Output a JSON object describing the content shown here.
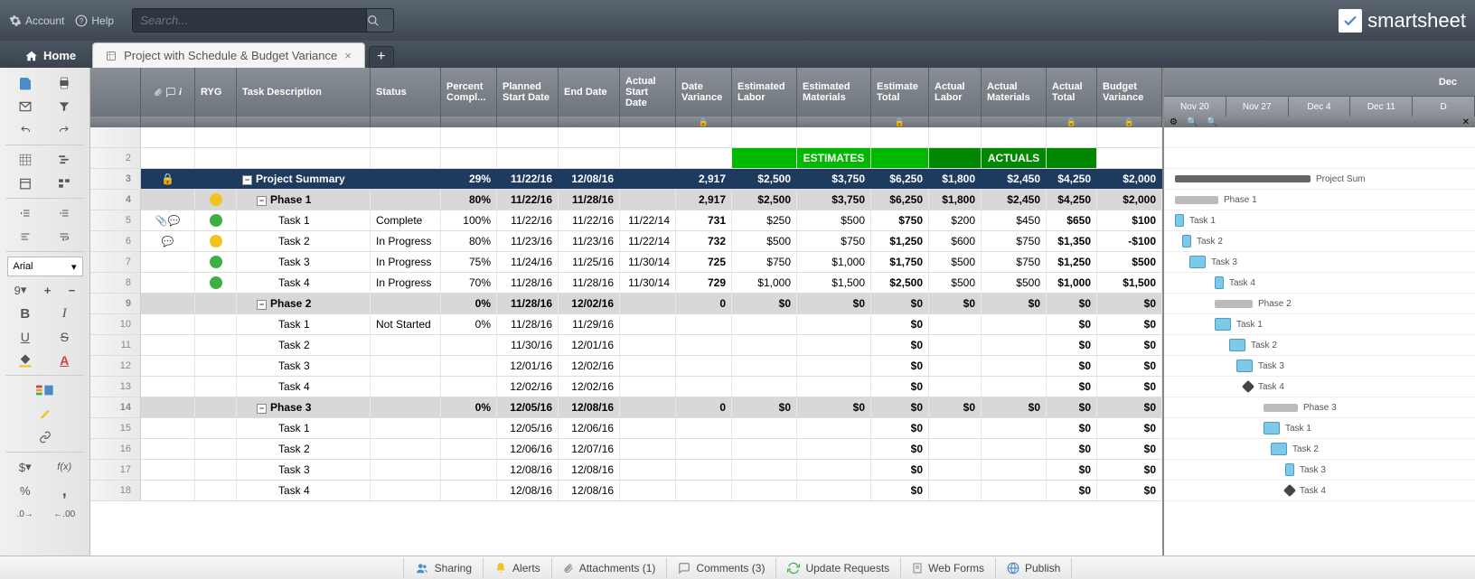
{
  "topbar": {
    "account": "Account",
    "help": "Help",
    "search_placeholder": "Search...",
    "brand": "smartsheet"
  },
  "tabs": {
    "home": "Home",
    "sheet": "Project with Schedule & Budget Variance"
  },
  "toolbar": {
    "font": "Arial",
    "size": "9",
    "bold": "B",
    "italic": "I",
    "underline": "U",
    "strike": "S",
    "currency": "$",
    "fx": "f(x)",
    "percent": "%",
    "comma": ",",
    "dec_inc": ".0",
    "dec_dec": ".00"
  },
  "columns": {
    "ryg": "RYG",
    "task": "Task Description",
    "status": "Status",
    "pct": "Percent Compl...",
    "psd": "Planned Start Date",
    "end": "End Date",
    "asd": "Actual Start Date",
    "dv": "Date Variance",
    "el": "Estimated Labor",
    "em": "Estimated Materials",
    "et": "Estimate Total",
    "al": "Actual Labor",
    "am": "Actual Materials",
    "at": "Actual Total",
    "bv": "Budget Variance"
  },
  "section_labels": {
    "estimates": "ESTIMATES",
    "actuals": "ACTUALS"
  },
  "gantt": {
    "month": "Dec",
    "weeks": [
      "Nov 20",
      "Nov 27",
      "Dec 4",
      "Dec 11",
      "D"
    ]
  },
  "colors": {
    "green": "#3cb043",
    "yellow": "#f0c420",
    "summary_bg": "#1f3a5f",
    "phase_bg": "#d8d8d8",
    "est_hdr": "#00b800",
    "act_hdr": "#008800",
    "task_bar": "#7ec8e8"
  },
  "rows": [
    {
      "num": "",
      "type": "blank"
    },
    {
      "num": "2",
      "type": "estimates"
    },
    {
      "num": "3",
      "type": "summary",
      "task": "Project Summary",
      "pct": "29%",
      "psd": "11/22/16",
      "end": "12/08/16",
      "dv": "2,917",
      "el": "$2,500",
      "em": "$3,750",
      "et": "$6,250",
      "al": "$1,800",
      "am": "$2,450",
      "at": "$4,250",
      "bv": "$2,000",
      "gantt_label": "Project Sum",
      "gx": 12,
      "gw": 150
    },
    {
      "num": "4",
      "type": "phase",
      "ryg": "yellow",
      "task": "Phase 1",
      "pct": "80%",
      "psd": "11/22/16",
      "end": "11/28/16",
      "dv": "2,917",
      "el": "$2,500",
      "em": "$3,750",
      "et": "$6,250",
      "al": "$1,800",
      "am": "$2,450",
      "at": "$4,250",
      "bv": "$2,000",
      "gantt_label": "Phase 1",
      "gx": 12,
      "gw": 48
    },
    {
      "num": "5",
      "type": "task",
      "attach": true,
      "comment": true,
      "ryg": "green",
      "task": "Task 1",
      "status": "Complete",
      "pct": "100%",
      "psd": "11/22/16",
      "end": "11/22/16",
      "asd": "11/22/14",
      "dv": "731",
      "el": "$250",
      "em": "$500",
      "et": "$750",
      "al": "$200",
      "am": "$450",
      "at": "$650",
      "bv": "$100",
      "gantt_label": "Task 1",
      "gx": 12,
      "gw": 10
    },
    {
      "num": "6",
      "type": "task",
      "comment": true,
      "ryg": "yellow",
      "task": "Task 2",
      "status": "In Progress",
      "pct": "80%",
      "psd": "11/23/16",
      "end": "11/23/16",
      "asd": "11/22/14",
      "dv": "732",
      "el": "$500",
      "em": "$750",
      "et": "$1,250",
      "al": "$600",
      "am": "$750",
      "at": "$1,350",
      "bv": "-$100",
      "gantt_label": "Task 2",
      "gx": 20,
      "gw": 10
    },
    {
      "num": "7",
      "type": "task",
      "ryg": "green",
      "task": "Task 3",
      "status": "In Progress",
      "pct": "75%",
      "psd": "11/24/16",
      "end": "11/25/16",
      "asd": "11/30/14",
      "dv": "725",
      "el": "$750",
      "em": "$1,000",
      "et": "$1,750",
      "al": "$500",
      "am": "$750",
      "at": "$1,250",
      "bv": "$500",
      "gantt_label": "Task 3",
      "gx": 28,
      "gw": 18
    },
    {
      "num": "8",
      "type": "task",
      "ryg": "green",
      "task": "Task 4",
      "status": "In Progress",
      "pct": "70%",
      "psd": "11/28/16",
      "end": "11/28/16",
      "asd": "11/30/14",
      "dv": "729",
      "el": "$1,000",
      "em": "$1,500",
      "et": "$2,500",
      "al": "$500",
      "am": "$500",
      "at": "$1,000",
      "bv": "$1,500",
      "gantt_label": "Task 4",
      "gx": 56,
      "gw": 10
    },
    {
      "num": "9",
      "type": "phase",
      "task": "Phase 2",
      "pct": "0%",
      "psd": "11/28/16",
      "end": "12/02/16",
      "dv": "0",
      "el": "$0",
      "em": "$0",
      "et": "$0",
      "al": "$0",
      "am": "$0",
      "at": "$0",
      "bv": "$0",
      "gantt_label": "Phase 2",
      "gx": 56,
      "gw": 42
    },
    {
      "num": "10",
      "type": "task",
      "task": "Task 1",
      "status": "Not Started",
      "pct": "0%",
      "psd": "11/28/16",
      "end": "11/29/16",
      "et": "$0",
      "at": "$0",
      "bv": "$0",
      "gantt_label": "Task 1",
      "gx": 56,
      "gw": 18
    },
    {
      "num": "11",
      "type": "task",
      "task": "Task 2",
      "psd": "11/30/16",
      "end": "12/01/16",
      "et": "$0",
      "at": "$0",
      "bv": "$0",
      "gantt_label": "Task 2",
      "gx": 72,
      "gw": 18
    },
    {
      "num": "12",
      "type": "task",
      "task": "Task 3",
      "psd": "12/01/16",
      "end": "12/02/16",
      "et": "$0",
      "at": "$0",
      "bv": "$0",
      "gantt_label": "Task 3",
      "gx": 80,
      "gw": 18
    },
    {
      "num": "13",
      "type": "task",
      "task": "Task 4",
      "psd": "12/02/16",
      "end": "12/02/16",
      "et": "$0",
      "at": "$0",
      "bv": "$0",
      "gantt_label": "Task 4",
      "gx": 88,
      "gw": 10,
      "milestone": true
    },
    {
      "num": "14",
      "type": "phase",
      "task": "Phase 3",
      "pct": "0%",
      "psd": "12/05/16",
      "end": "12/08/16",
      "dv": "0",
      "el": "$0",
      "em": "$0",
      "et": "$0",
      "al": "$0",
      "am": "$0",
      "at": "$0",
      "bv": "$0",
      "gantt_label": "Phase 3",
      "gx": 110,
      "gw": 38
    },
    {
      "num": "15",
      "type": "task",
      "task": "Task 1",
      "psd": "12/05/16",
      "end": "12/06/16",
      "et": "$0",
      "at": "$0",
      "bv": "$0",
      "gantt_label": "Task 1",
      "gx": 110,
      "gw": 18
    },
    {
      "num": "16",
      "type": "task",
      "task": "Task 2",
      "psd": "12/06/16",
      "end": "12/07/16",
      "et": "$0",
      "at": "$0",
      "bv": "$0",
      "gantt_label": "Task 2",
      "gx": 118,
      "gw": 18
    },
    {
      "num": "17",
      "type": "task",
      "task": "Task 3",
      "psd": "12/08/16",
      "end": "12/08/16",
      "et": "$0",
      "at": "$0",
      "bv": "$0",
      "gantt_label": "Task 3",
      "gx": 134,
      "gw": 10
    },
    {
      "num": "18",
      "type": "task",
      "task": "Task 4",
      "psd": "12/08/16",
      "end": "12/08/16",
      "et": "$0",
      "at": "$0",
      "bv": "$0",
      "gantt_label": "Task 4",
      "gx": 134,
      "gw": 10,
      "milestone": true
    }
  ],
  "bottombar": {
    "sharing": "Sharing",
    "alerts": "Alerts",
    "attachments": "Attachments (1)",
    "comments": "Comments (3)",
    "updates": "Update Requests",
    "webforms": "Web Forms",
    "publish": "Publish"
  }
}
